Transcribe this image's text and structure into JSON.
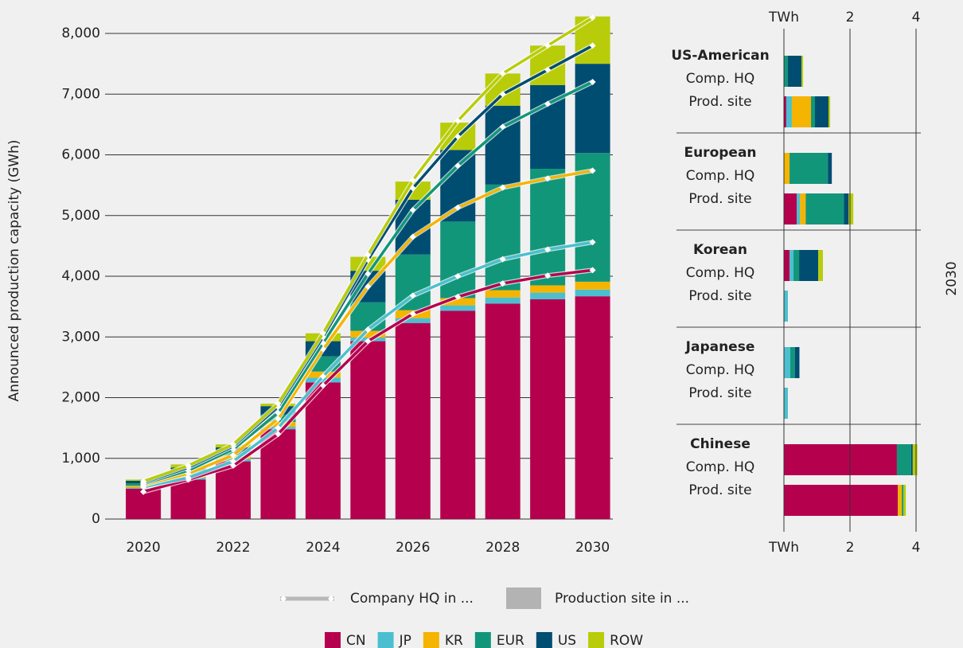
{
  "chart_data": [
    {
      "type": "bar",
      "ylabel": "Announced production capacity (GWh)",
      "x": [
        2020,
        2021,
        2022,
        2023,
        2024,
        2025,
        2026,
        2027,
        2028,
        2029,
        2030
      ],
      "xlim": [
        2018.9,
        2030.45
      ],
      "xticks": [
        2020,
        2022,
        2024,
        2026,
        2028,
        2030
      ],
      "ylim": [
        0,
        8300
      ],
      "yticks": [
        0,
        {
          "value": 1000,
          "label": "1,000"
        },
        {
          "value": 2000,
          "label": "2,000"
        },
        {
          "value": 3000,
          "label": "3,000"
        },
        {
          "value": 4000,
          "label": "4,000"
        },
        {
          "value": 5000,
          "label": "5,000"
        },
        {
          "value": 6000,
          "label": "6,000"
        },
        {
          "value": 7000,
          "label": "7,000"
        },
        {
          "value": 8000,
          "label": "8,000"
        }
      ],
      "grid": true,
      "legend_labels": {
        "line": "Company HQ in ...",
        "bar": "Production site in ..."
      },
      "series": [
        {
          "name": "CN",
          "color": "#b5004e",
          "values": [
            500,
            650,
            950,
            1480,
            2250,
            2930,
            3230,
            3430,
            3550,
            3620,
            3670
          ],
          "line_values": [
            450,
            650,
            880,
            1400,
            2200,
            2930,
            3380,
            3660,
            3880,
            4010,
            4100
          ]
        },
        {
          "name": "JP",
          "color": "#4bbfcf",
          "values": [
            20,
            30,
            40,
            40,
            80,
            60,
            80,
            90,
            100,
            110,
            110
          ],
          "line_values": [
            80,
            30,
            70,
            100,
            150,
            190,
            300,
            340,
            400,
            430,
            460
          ]
        },
        {
          "name": "KR",
          "color": "#f5b400",
          "values": [
            30,
            50,
            60,
            80,
            100,
            110,
            130,
            120,
            120,
            120,
            130
          ],
          "line_values": [
            30,
            70,
            100,
            150,
            450,
            710,
            970,
            1130,
            1180,
            1170,
            1180
          ]
        },
        {
          "name": "EUR",
          "color": "#12967a",
          "values": [
            40,
            60,
            70,
            120,
            250,
            470,
            920,
            1260,
            1740,
            1920,
            2120
          ],
          "line_values": [
            20,
            50,
            100,
            100,
            100,
            210,
            440,
            690,
            1000,
            1230,
            1460
          ]
        },
        {
          "name": "US",
          "color": "#004d72",
          "values": [
            40,
            60,
            60,
            140,
            250,
            520,
            900,
            1180,
            1300,
            1380,
            1470
          ],
          "line_values": [
            20,
            50,
            50,
            100,
            100,
            230,
            360,
            480,
            540,
            560,
            600
          ]
        },
        {
          "name": "ROW",
          "color": "#b8cc0a",
          "values": [
            20,
            50,
            50,
            40,
            130,
            230,
            300,
            450,
            530,
            650,
            780
          ],
          "line_values": [
            20,
            30,
            30,
            50,
            60,
            80,
            130,
            260,
            340,
            400,
            460
          ]
        }
      ]
    },
    {
      "type": "hbar",
      "label": "2030",
      "xlim": [
        0,
        4.15
      ],
      "xticks": [
        {
          "value": 0,
          "label": "TWh"
        },
        2,
        4
      ],
      "groups": [
        {
          "name": "US-American",
          "rows": [
            {
              "label": "Comp. HQ",
              "values": [
                0,
                0,
                0,
                0.12,
                0.41,
                0.05
              ]
            },
            {
              "label": "Prod. site",
              "values": [
                0.07,
                0.17,
                0.58,
                0.12,
                0.41,
                0.05
              ]
            }
          ]
        },
        {
          "name": "European",
          "rows": [
            {
              "label": "Comp. HQ",
              "values": [
                0,
                0,
                0.17,
                1.16,
                0.12,
                0
              ]
            },
            {
              "label": "Prod. site",
              "values": [
                0.39,
                0.1,
                0.17,
                1.16,
                0.14,
                0.14
              ]
            }
          ]
        },
        {
          "name": "Korean",
          "rows": [
            {
              "label": "Comp. HQ",
              "values": [
                0.17,
                0.12,
                0,
                0.17,
                0.58,
                0.14
              ]
            },
            {
              "label": "Prod. site",
              "values": [
                0,
                0.12,
                0,
                0,
                0,
                0
              ]
            }
          ]
        },
        {
          "name": "Japanese",
          "rows": [
            {
              "label": "Comp. HQ",
              "values": [
                0,
                0.19,
                0,
                0.14,
                0.14,
                0
              ]
            },
            {
              "label": "Prod. site",
              "values": [
                0,
                0.12,
                0,
                0,
                0,
                0
              ]
            }
          ]
        },
        {
          "name": "Chinese",
          "rows": [
            {
              "label": "Comp. HQ",
              "values": [
                3.42,
                0,
                0,
                0.43,
                0.05,
                0.14
              ]
            },
            {
              "label": "Prod. site",
              "values": [
                3.45,
                0,
                0.12,
                0.05,
                0,
                0.07
              ]
            }
          ]
        }
      ]
    }
  ]
}
